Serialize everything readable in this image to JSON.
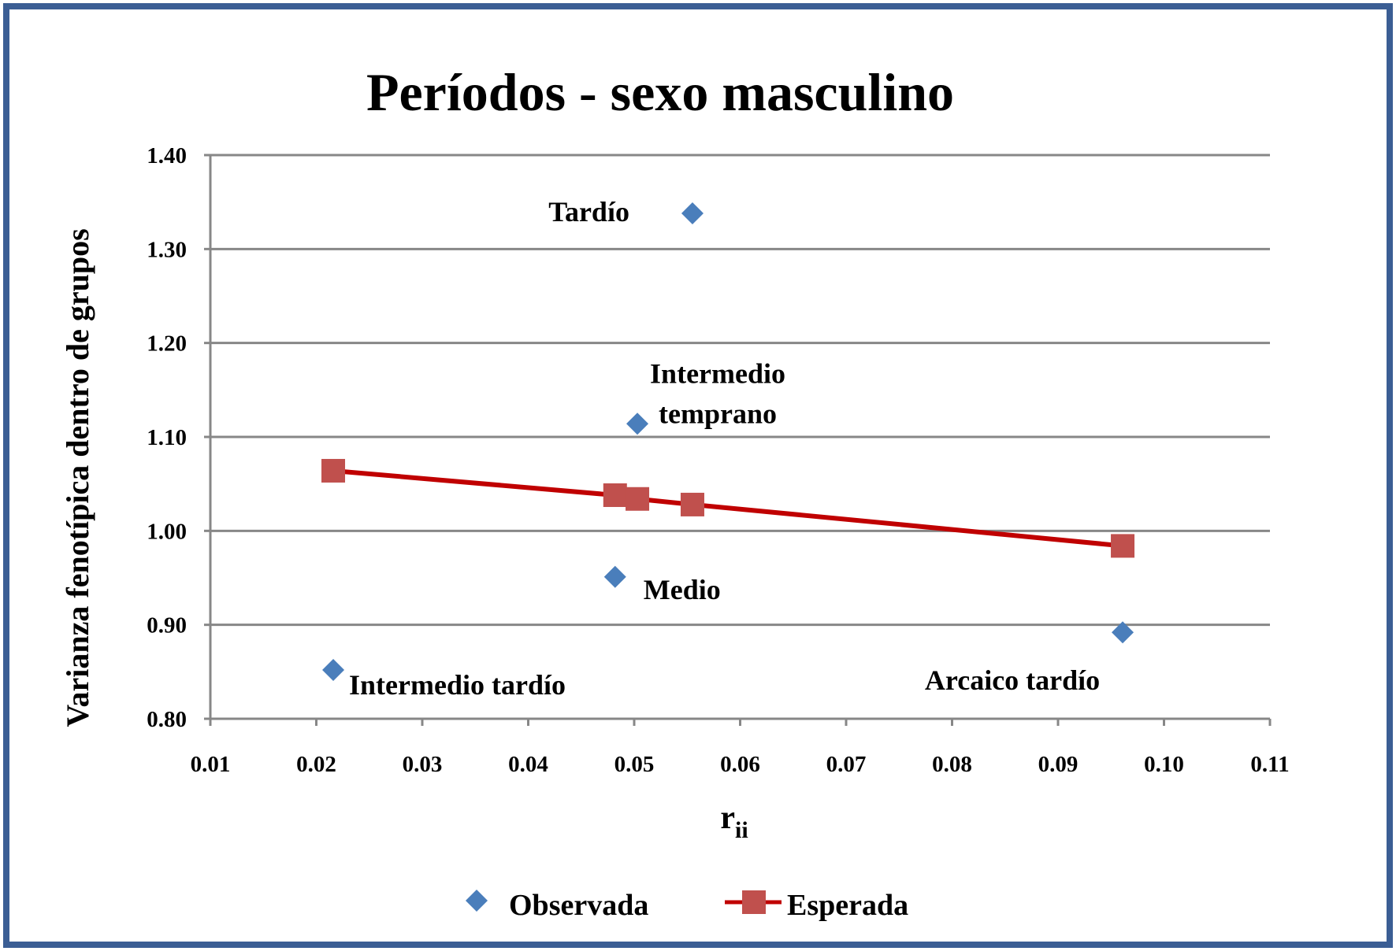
{
  "chart_data": {
    "type": "scatter",
    "title": "Períodos - sexo masculino",
    "xlabel": "r",
    "xlabel_subscript": "ii",
    "ylabel": "Varianza fenotípica dentro de grupos",
    "xlim": [
      0.01,
      0.11
    ],
    "ylim": [
      0.8,
      1.4
    ],
    "x_ticks": [
      "0.01",
      "0.02",
      "0.03",
      "0.04",
      "0.05",
      "0.06",
      "0.07",
      "0.08",
      "0.09",
      "0.10",
      "0.11"
    ],
    "y_ticks": [
      "0.80",
      "0.90",
      "1.00",
      "1.10",
      "1.20",
      "1.30",
      "1.40"
    ],
    "grid": "horizontal",
    "legend_position": "bottom",
    "series": [
      {
        "name": "Observada",
        "marker": "diamond",
        "color": "#4A7EBB",
        "points": [
          {
            "x": 0.0216,
            "y": 0.852,
            "label": "Intermedio tardío"
          },
          {
            "x": 0.0482,
            "y": 0.951,
            "label": "Medio"
          },
          {
            "x": 0.0503,
            "y": 1.114,
            "label": "Intermedio temprano"
          },
          {
            "x": 0.0555,
            "y": 1.338,
            "label": "Tardío"
          },
          {
            "x": 0.0961,
            "y": 0.892,
            "label": "Arcaico tardío"
          }
        ]
      },
      {
        "name": "Esperada",
        "marker": "square",
        "color": "#C0504D",
        "line_color": "#C00000",
        "points": [
          {
            "x": 0.0216,
            "y": 1.064
          },
          {
            "x": 0.0482,
            "y": 1.038
          },
          {
            "x": 0.0503,
            "y": 1.034
          },
          {
            "x": 0.0555,
            "y": 1.028
          },
          {
            "x": 0.0961,
            "y": 0.984
          }
        ]
      }
    ]
  }
}
